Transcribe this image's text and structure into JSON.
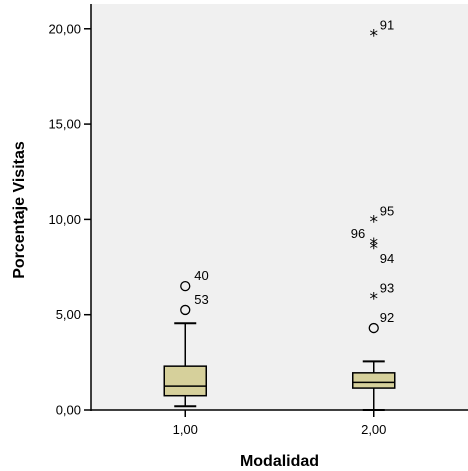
{
  "chart_data": {
    "type": "boxplot",
    "xlabel": "Modalidad",
    "ylabel": "Porcentaje Visitas",
    "ylim": [
      0,
      21.3
    ],
    "yticks": [
      0,
      5,
      10,
      15,
      20
    ],
    "ytick_labels": [
      "0,00",
      "5,00",
      "10,00",
      "15,00",
      "20,00"
    ],
    "categories": [
      "1,00",
      "2,00"
    ],
    "colors": {
      "plot_bg": "#f0f0f0",
      "box_fill": "#d6d09b",
      "stroke": "#000000"
    },
    "boxes": [
      {
        "category": "1,00",
        "whisker_low": 0.2,
        "q1": 0.75,
        "median": 1.25,
        "q3": 2.3,
        "whisker_high": 4.55,
        "outliers": [
          {
            "label": "40",
            "value": 6.5,
            "marker": "circle"
          },
          {
            "label": "53",
            "value": 5.25,
            "marker": "circle"
          }
        ]
      },
      {
        "category": "2,00",
        "whisker_low": 0.0,
        "q1": 1.15,
        "median": 1.45,
        "q3": 1.95,
        "whisker_high": 2.55,
        "outliers": [
          {
            "label": "91",
            "value": 19.7,
            "marker": "star"
          },
          {
            "label": "95",
            "value": 9.95,
            "marker": "star"
          },
          {
            "label": "96",
            "value": 8.75,
            "marker": "star"
          },
          {
            "label": "94",
            "value": 8.55,
            "marker": "star"
          },
          {
            "label": "93",
            "value": 5.9,
            "marker": "star"
          },
          {
            "label": "92",
            "value": 4.3,
            "marker": "circle"
          }
        ]
      }
    ]
  }
}
